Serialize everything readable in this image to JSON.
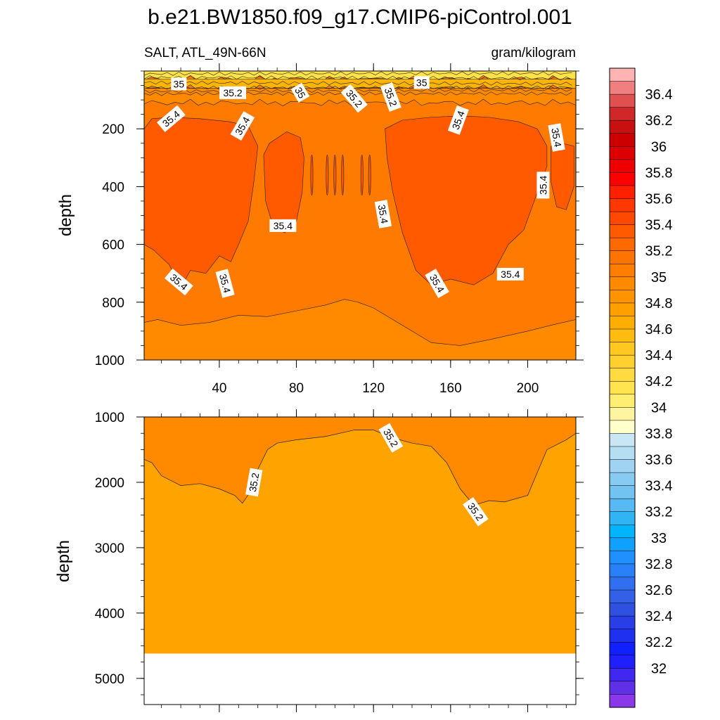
{
  "chart_data": {
    "type": "contour",
    "title": "b.e21.BW1850.f09_g17.CMIP6-piControl.001",
    "subtitle_left": "SALT, ATL_49N-66N",
    "subtitle_right": "gram/kilogram",
    "variable": "SALT",
    "region": "ATL_49N-66N",
    "units": "gram/kilogram",
    "x_range": [
      1,
      225
    ],
    "x_ticks": [
      "40",
      "80",
      "120",
      "160",
      "200"
    ],
    "x_tick_values": [
      40,
      80,
      120,
      160,
      200
    ],
    "panels": [
      {
        "name": "upper",
        "ylabel": "depth",
        "ylim": [
          0,
          1000
        ],
        "y_inverted": true,
        "y_ticks": [
          "200",
          "400",
          "600",
          "800",
          "1000"
        ],
        "y_tick_values": [
          200,
          400,
          600,
          800,
          1000
        ],
        "x_ticklabels_shown": true,
        "contour_labels": [
          {
            "text": "35",
            "x": 19,
            "y": 45,
            "angle": 0
          },
          {
            "text": "35.2",
            "x": 47,
            "y": 75,
            "angle": 0
          },
          {
            "text": "35",
            "x": 82,
            "y": 75,
            "angle": 60
          },
          {
            "text": "35.2",
            "x": 110,
            "y": 95,
            "angle": 50
          },
          {
            "text": "35.2",
            "x": 129,
            "y": 90,
            "angle": 70
          },
          {
            "text": "35",
            "x": 145,
            "y": 40,
            "angle": 0
          },
          {
            "text": "35.4",
            "x": 15,
            "y": 165,
            "angle": -40
          },
          {
            "text": "35.4",
            "x": 52,
            "y": 190,
            "angle": -60
          },
          {
            "text": "35.4",
            "x": 164,
            "y": 170,
            "angle": -70
          },
          {
            "text": "35.4",
            "x": 215,
            "y": 230,
            "angle": 80
          },
          {
            "text": "35.4",
            "x": 208,
            "y": 395,
            "angle": -90
          },
          {
            "text": "35.4",
            "x": 125,
            "y": 495,
            "angle": 80
          },
          {
            "text": "35.4",
            "x": 73,
            "y": 535,
            "angle": 0
          },
          {
            "text": "35.4",
            "x": 19,
            "y": 730,
            "angle": 40
          },
          {
            "text": "35.4",
            "x": 43,
            "y": 735,
            "angle": 75
          },
          {
            "text": "35.4",
            "x": 153,
            "y": 735,
            "angle": 60
          },
          {
            "text": "35.4",
            "x": 191,
            "y": 703,
            "angle": 0
          }
        ]
      },
      {
        "name": "lower",
        "ylabel": "depth",
        "ylim": [
          1000,
          5400
        ],
        "y_inverted": true,
        "y_ticks": [
          "1000",
          "2000",
          "3000",
          "4000",
          "5000"
        ],
        "y_tick_values": [
          1000,
          2000,
          3000,
          4000,
          5000
        ],
        "x_ticklabels_shown": false,
        "ocean_bottom_depth": 4620,
        "contour_labels": [
          {
            "text": "35.2",
            "x": 58,
            "y": 2000,
            "angle": -80
          },
          {
            "text": "35.2",
            "x": 129,
            "y": 1320,
            "angle": 60
          },
          {
            "text": "35.2",
            "x": 173,
            "y": 2450,
            "angle": 55
          }
        ]
      }
    ],
    "colorbar": {
      "labels": [
        "36.4",
        "36.2",
        "36",
        "35.8",
        "35.6",
        "35.4",
        "35.2",
        "35",
        "34.8",
        "34.6",
        "34.4",
        "34.2",
        "34",
        "33.8",
        "33.6",
        "33.4",
        "33.2",
        "33",
        "32.8",
        "32.6",
        "32.4",
        "32.2",
        "32"
      ],
      "colors_top_to_bottom": [
        "#ffb3b3",
        "#f08080",
        "#e05050",
        "#d02828",
        "#c81010",
        "#cc0000",
        "#dd0000",
        "#ee0000",
        "#ff0000",
        "#ff2000",
        "#ff3800",
        "#ff4800",
        "#ff5a00",
        "#ff6a00",
        "#ff7400",
        "#ff7e00",
        "#ff8a00",
        "#ff9400",
        "#ffa000",
        "#ffae00",
        "#ffbc10",
        "#ffc820",
        "#ffd030",
        "#ffda40",
        "#ffe450",
        "#ffee70",
        "#fff5a0",
        "#ffffcc",
        "#c8e6f4",
        "#b4def2",
        "#9ed4f2",
        "#88cbf2",
        "#72c2f2",
        "#58baf4",
        "#30b4f4",
        "#00b4ff",
        "#10a0ff",
        "#2090ff",
        "#2a80f8",
        "#3070f0",
        "#3460e8",
        "#3050e0",
        "#2a3ee8",
        "#2030f0",
        "#1020ff",
        "#2020ff",
        "#4028f0",
        "#6030e8",
        "#8a38e8"
      ]
    }
  }
}
